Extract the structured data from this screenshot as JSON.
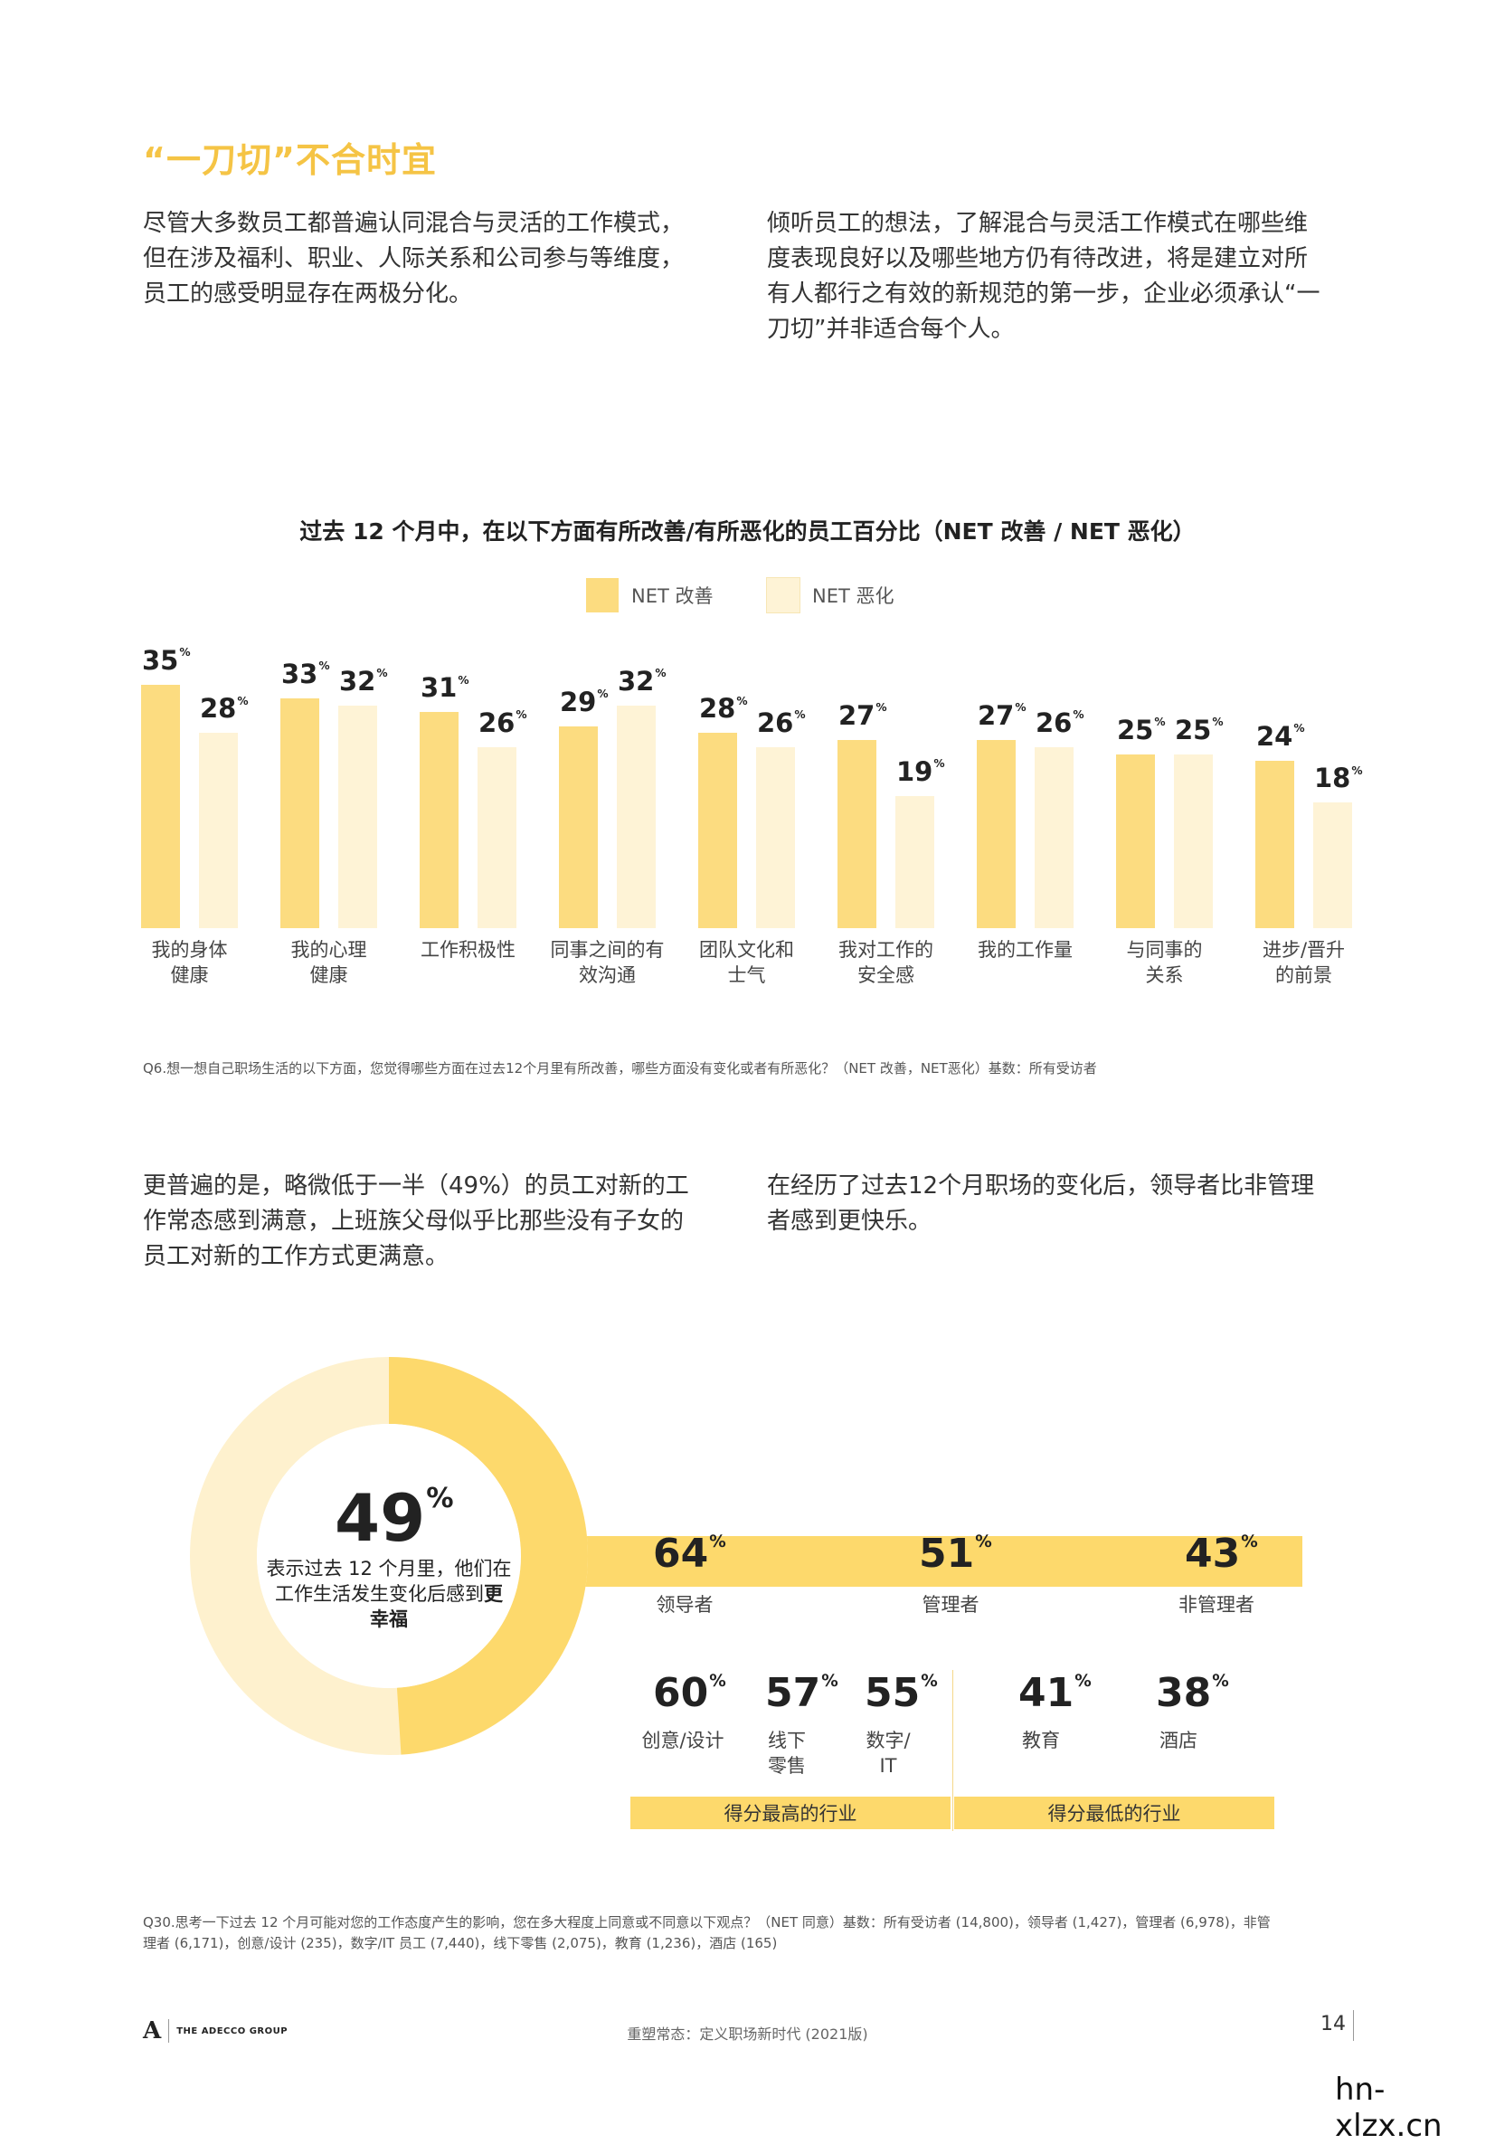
{
  "section_title": "“一刀切”不合时宜",
  "intro": {
    "left": [
      "尽管大多数员工都普遍认同混合与灵活的工作模式，",
      "但在涉及福利、职业、人际关系和公司参与等维度，",
      "员工的感受明显存在两极分化。"
    ],
    "right": [
      "倾听员工的想法，了解混合与灵活工作模式在哪些维",
      "度表现良好以及哪些地方仍有待改进，将是建立对所",
      "有人都行之有效的新规范的第一步，企业必须承认“一",
      "刀切”并非适合每个人。"
    ]
  },
  "chart_data": {
    "type": "bar",
    "title": "过去 12 个月中，在以下方面有所改善/有所恶化的员工百分比（NET 改善 / NET 恶化）",
    "unit": "%",
    "categories": [
      [
        "我的身体",
        "健康"
      ],
      [
        "我的心理",
        "健康"
      ],
      [
        "工作积极性"
      ],
      [
        "同事之间的有",
        "效沟通"
      ],
      [
        "团队文化和",
        "士气"
      ],
      [
        "我对工作的",
        "安全感"
      ],
      [
        "我的工作量"
      ],
      [
        "与同事的",
        "关系"
      ],
      [
        "进步/晋升",
        "的前景"
      ]
    ],
    "series": [
      {
        "name": "NET 改善",
        "color": "#fcdc80",
        "values": [
          35,
          33,
          31,
          29,
          28,
          27,
          27,
          25,
          24
        ]
      },
      {
        "name": "NET 恶化",
        "color": "#fef3d6",
        "values": [
          28,
          32,
          26,
          32,
          26,
          19,
          26,
          25,
          18
        ]
      }
    ],
    "legend": "top-center",
    "grid": false
  },
  "q6_note": "Q6.想一想自己职场生活的以下方面，您觉得哪些方面在过去12个月里有所改善，哪些方面没有变化或者有所恶化？（NET 改善，NET恶化）基数：所有受访者",
  "mid": {
    "left": [
      "更普遍的是，略微低于一半（49%）的员工对新的工",
      "作常态感到满意，上班族父母似乎比那些没有子女的",
      "员工对新的工作方式更满意。"
    ],
    "right": [
      "在经历了过去12个月职场的变化后，领导者比非管理",
      "者感到更快乐。"
    ]
  },
  "donut": {
    "value": 49,
    "unit": "%",
    "desc_line1": "表示过去 12 个月里，他们在",
    "desc_line2": "工作生活发生变化后感到",
    "desc_bold1": "更",
    "desc_bold2": "幸福",
    "fill_color": "#fdd96c",
    "rest_color": "#fef1ce"
  },
  "roles": [
    {
      "value": "64",
      "unit": "%",
      "label": "领导者"
    },
    {
      "value": "51",
      "unit": "%",
      "label": "管理者"
    },
    {
      "value": "43",
      "unit": "%",
      "label": "非管理者"
    }
  ],
  "industries_top": [
    {
      "value": "60",
      "unit": "%",
      "label": [
        "创意/设计"
      ]
    },
    {
      "value": "57",
      "unit": "%",
      "label": [
        "线下",
        "零售"
      ]
    },
    {
      "value": "55",
      "unit": "%",
      "label": [
        "数字/",
        "IT"
      ]
    }
  ],
  "industries_bottom": [
    {
      "value": "41",
      "unit": "%",
      "label": [
        "教育"
      ]
    },
    {
      "value": "38",
      "unit": "%",
      "label": [
        "酒店"
      ]
    }
  ],
  "band_top_label": "得分最高的行业",
  "band_bottom_label": "得分最低的行业",
  "q30_note": [
    "Q30.思考一下过去 12 个月可能对您的工作态度产生的影响，您在多大程度上同意或不同意以下观点？（NET 同意）基数：所有受访者 (14,800)，领导者 (1,427)，管理者 (6,978)，非管",
    "理者 (6,171)，创意/设计 (235)，数字/IT 员工 (7,440)，线下零售 (2,075)，教育 (1,236)，酒店 (165)"
  ],
  "footer": {
    "logo_letter": "A",
    "brand": "THE ADECCO GROUP",
    "center": "重塑常态：定义职场新时代 (2021版)",
    "page": "14"
  },
  "watermark": "hn-xlzx.cn",
  "colors": {
    "accent": "#f5c445",
    "bar_improve": "#fcdc80",
    "bar_worse": "#fef3d6",
    "band": "#fdd96c"
  }
}
